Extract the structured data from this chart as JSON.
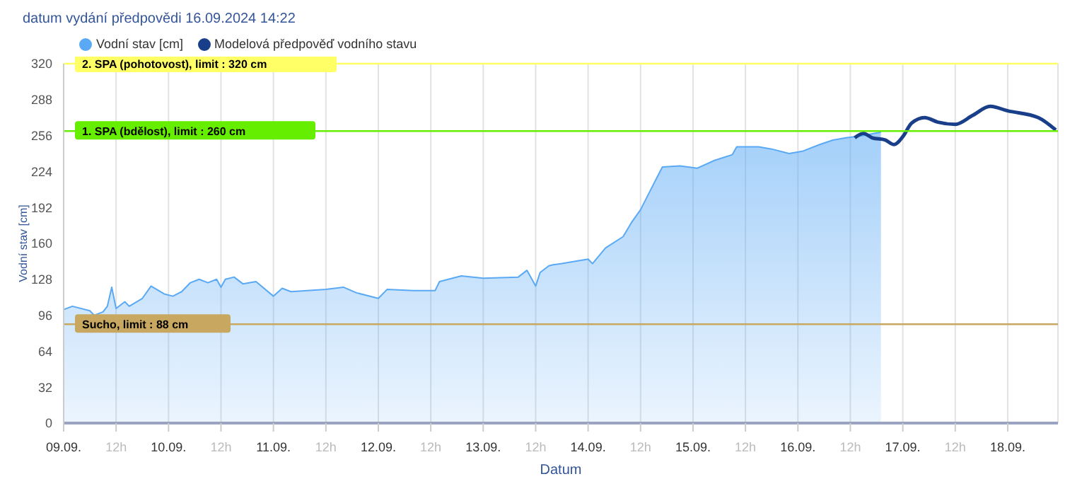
{
  "chart_data": {
    "type": "area",
    "title": "datum vydání předpovědi 16.09.2024 14:22",
    "xlabel": "Datum",
    "ylabel": "Vodní stav [cm]",
    "xlim": [
      "2024-09-09T00:00",
      "2024-09-18T11:30"
    ],
    "xticks": [
      {
        "value": "2024-09-09T00:00",
        "label": "09.09."
      },
      {
        "value": "2024-09-09T12:00",
        "label": "12h"
      },
      {
        "value": "2024-09-10T00:00",
        "label": "10.09."
      },
      {
        "value": "2024-09-10T12:00",
        "label": "12h"
      },
      {
        "value": "2024-09-11T00:00",
        "label": "11.09."
      },
      {
        "value": "2024-09-11T12:00",
        "label": "12h"
      },
      {
        "value": "2024-09-12T00:00",
        "label": "12.09."
      },
      {
        "value": "2024-09-12T12:00",
        "label": "12h"
      },
      {
        "value": "2024-09-13T00:00",
        "label": "13.09."
      },
      {
        "value": "2024-09-13T12:00",
        "label": "12h"
      },
      {
        "value": "2024-09-14T00:00",
        "label": "14.09."
      },
      {
        "value": "2024-09-14T12:00",
        "label": "12h"
      },
      {
        "value": "2024-09-15T00:00",
        "label": "15.09."
      },
      {
        "value": "2024-09-15T12:00",
        "label": "12h"
      },
      {
        "value": "2024-09-16T00:00",
        "label": "16.09."
      },
      {
        "value": "2024-09-16T12:00",
        "label": "12h"
      },
      {
        "value": "2024-09-17T00:00",
        "label": "17.09."
      },
      {
        "value": "2024-09-17T12:00",
        "label": "12h"
      },
      {
        "value": "2024-09-18T00:00",
        "label": "18.09."
      }
    ],
    "ylim": [
      0,
      320
    ],
    "yticks": [
      0,
      32,
      64,
      96,
      128,
      160,
      192,
      224,
      256,
      288,
      320
    ],
    "grid": true,
    "legend": "top left",
    "series": [
      {
        "name": "Vodní stav [cm]",
        "color": "#5aa9f5",
        "x": [
          "2024-09-09T00:00",
          "2024-09-09T02:00",
          "2024-09-09T06:00",
          "2024-09-09T07:00",
          "2024-09-09T09:00",
          "2024-09-09T10:00",
          "2024-09-09T11:00",
          "2024-09-09T12:00",
          "2024-09-09T14:00",
          "2024-09-09T15:00",
          "2024-09-09T18:00",
          "2024-09-09T20:00",
          "2024-09-09T23:00",
          "2024-09-10T01:00",
          "2024-09-10T03:00",
          "2024-09-10T05:00",
          "2024-09-10T07:00",
          "2024-09-10T09:00",
          "2024-09-10T11:00",
          "2024-09-10T12:00",
          "2024-09-10T13:00",
          "2024-09-10T15:00",
          "2024-09-10T17:00",
          "2024-09-10T20:00",
          "2024-09-11T00:00",
          "2024-09-11T02:00",
          "2024-09-11T04:00",
          "2024-09-11T12:00",
          "2024-09-11T16:00",
          "2024-09-11T19:00",
          "2024-09-12T00:00",
          "2024-09-12T02:00",
          "2024-09-12T08:00",
          "2024-09-12T13:00",
          "2024-09-12T14:00",
          "2024-09-12T19:00",
          "2024-09-13T00:00",
          "2024-09-13T08:00",
          "2024-09-13T10:00",
          "2024-09-13T12:00",
          "2024-09-13T13:00",
          "2024-09-13T15:00",
          "2024-09-13T16:00",
          "2024-09-13T18:00",
          "2024-09-14T00:00",
          "2024-09-14T01:00",
          "2024-09-14T04:00",
          "2024-09-14T08:00",
          "2024-09-14T10:00",
          "2024-09-14T12:00",
          "2024-09-14T15:00",
          "2024-09-14T17:00",
          "2024-09-14T21:00",
          "2024-09-15T01:00",
          "2024-09-15T05:00",
          "2024-09-15T09:00",
          "2024-09-15T10:00",
          "2024-09-15T15:00",
          "2024-09-15T18:00",
          "2024-09-15T22:00",
          "2024-09-16T01:00",
          "2024-09-16T05:00",
          "2024-09-16T08:00",
          "2024-09-16T11:00",
          "2024-09-16T15:00",
          "2024-09-16T19:00"
        ],
        "values": [
          101,
          104,
          100,
          96,
          99,
          104,
          121,
          102,
          108,
          104,
          111,
          122,
          115,
          113,
          117,
          125,
          128,
          125,
          128,
          121,
          128,
          130,
          124,
          126,
          113,
          120,
          117,
          119,
          121,
          116,
          111,
          119,
          118,
          118,
          126,
          131,
          129,
          130,
          136,
          122,
          134,
          140,
          141,
          142,
          146,
          142,
          156,
          166,
          179,
          190,
          213,
          228,
          229,
          227,
          234,
          239,
          246,
          246,
          244,
          240,
          242,
          248,
          252,
          254,
          256,
          259
        ]
      },
      {
        "name": "Modelová předpověď vodního stavu",
        "type": "line",
        "color": "#1a3f8a",
        "x": [
          "2024-09-16T13:00",
          "2024-09-16T15:00",
          "2024-09-16T17:00",
          "2024-09-16T20:00",
          "2024-09-16T22:00",
          "2024-09-17T00:00",
          "2024-09-17T02:00",
          "2024-09-17T05:00",
          "2024-09-17T08:00",
          "2024-09-17T12:00",
          "2024-09-17T16:00",
          "2024-09-17T20:00",
          "2024-09-18T00:00",
          "2024-09-18T07:00",
          "2024-09-18T11:00"
        ],
        "values": [
          254,
          258,
          254,
          252,
          248,
          255,
          267,
          272,
          268,
          266,
          274,
          282,
          278,
          272,
          261
        ]
      }
    ],
    "ref_lines": [
      {
        "axis": "y",
        "value": 320,
        "label": "2. SPA (pohotovost), limit : 320 cm",
        "color": "#ffff66"
      },
      {
        "axis": "y",
        "value": 260,
        "label": "1. SPA (bdělost), limit : 260 cm",
        "color": "#66ee00"
      },
      {
        "axis": "y",
        "value": 88,
        "label": "Sucho, limit : 88 cm",
        "color": "#c8a860"
      }
    ]
  }
}
